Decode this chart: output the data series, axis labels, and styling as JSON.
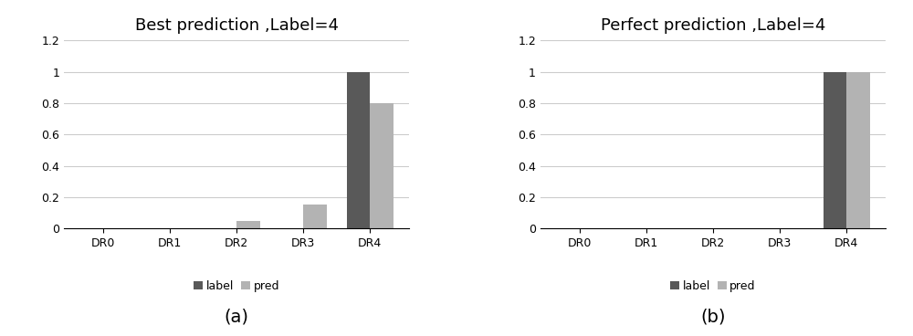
{
  "chart_a": {
    "title": "Best prediction ,Label=4",
    "categories": [
      "DR0",
      "DR1",
      "DR2",
      "DR3",
      "DR4"
    ],
    "label_values": [
      0,
      0,
      0,
      0,
      1.0
    ],
    "pred_values": [
      0,
      0,
      0.05,
      0.15,
      0.8
    ],
    "label_color": "#595959",
    "pred_color": "#b3b3b3",
    "ylim": [
      0,
      1.2
    ],
    "yticks": [
      0,
      0.2,
      0.4,
      0.6,
      0.8,
      1.0,
      1.2
    ],
    "ytick_labels": [
      "0",
      "0.2",
      "0.4",
      "0.6",
      "0.8",
      "1",
      "1.2"
    ],
    "subplot_label": "(a)"
  },
  "chart_b": {
    "title": "Perfect prediction ,Label=4",
    "categories": [
      "DR0",
      "DR1",
      "DR2",
      "DR3",
      "DR4"
    ],
    "label_values": [
      0,
      0,
      0,
      0,
      1.0
    ],
    "pred_values": [
      0,
      0,
      0,
      0,
      1.0
    ],
    "label_color": "#595959",
    "pred_color": "#b3b3b3",
    "ylim": [
      0,
      1.2
    ],
    "yticks": [
      0,
      0.2,
      0.4,
      0.6,
      0.8,
      1.0,
      1.2
    ],
    "ytick_labels": [
      "0",
      "0.2",
      "0.4",
      "0.6",
      "0.8",
      "1",
      "1.2"
    ],
    "subplot_label": "(b)"
  },
  "legend_labels": [
    "label",
    "pred"
  ],
  "bar_width": 0.35,
  "figsize": [
    10.0,
    3.68
  ],
  "dpi": 100,
  "background_color": "#ffffff",
  "grid_color": "#cccccc",
  "title_fontsize": 13,
  "tick_fontsize": 9,
  "legend_fontsize": 9,
  "subplot_label_fontsize": 14
}
